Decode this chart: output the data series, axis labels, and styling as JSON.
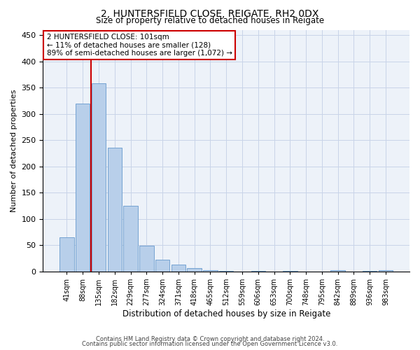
{
  "title": "2, HUNTERSFIELD CLOSE, REIGATE, RH2 0DX",
  "subtitle": "Size of property relative to detached houses in Reigate",
  "xlabel": "Distribution of detached houses by size in Reigate",
  "ylabel": "Number of detached properties",
  "categories": [
    "41sqm",
    "88sqm",
    "135sqm",
    "182sqm",
    "229sqm",
    "277sqm",
    "324sqm",
    "371sqm",
    "418sqm",
    "465sqm",
    "512sqm",
    "559sqm",
    "606sqm",
    "653sqm",
    "700sqm",
    "748sqm",
    "795sqm",
    "842sqm",
    "889sqm",
    "936sqm",
    "983sqm"
  ],
  "values": [
    65,
    320,
    358,
    235,
    125,
    49,
    23,
    13,
    7,
    2,
    1,
    0,
    1,
    0,
    1,
    0,
    0,
    3,
    0,
    1,
    2
  ],
  "bar_color": "#b8cfea",
  "bar_edge_color": "#6699cc",
  "grid_color": "#c8d4e8",
  "background_color": "#edf2f9",
  "vline_x_index": 1.5,
  "vline_color": "#cc0000",
  "annotation_text": "2 HUNTERSFIELD CLOSE: 101sqm\n← 11% of detached houses are smaller (128)\n89% of semi-detached houses are larger (1,072) →",
  "annotation_box_color": "#cc0000",
  "ylim": [
    0,
    460
  ],
  "yticks": [
    0,
    50,
    100,
    150,
    200,
    250,
    300,
    350,
    400,
    450
  ],
  "footer1": "Contains HM Land Registry data © Crown copyright and database right 2024.",
  "footer2": "Contains public sector information licensed under the Open Government Licence v3.0."
}
